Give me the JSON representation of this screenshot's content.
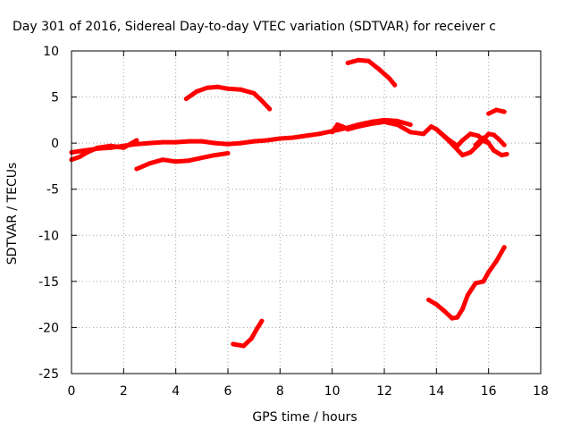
{
  "chart_data": {
    "type": "scatter",
    "title": "Day 301 of 2016, Sidereal Day-to-day VTEC variation (SDTVAR) for receiver c",
    "xlabel": "GPS time / hours",
    "ylabel": "SDTVAR / TECUs",
    "xlim": [
      0,
      18
    ],
    "ylim": [
      -25,
      10
    ],
    "xticks": [
      0,
      2,
      4,
      6,
      8,
      10,
      12,
      14,
      16,
      18
    ],
    "yticks": [
      10,
      5,
      0,
      -5,
      -10,
      -15,
      -20,
      -25
    ],
    "x_tick_labels": [
      "0",
      "2",
      "4",
      "6",
      "8",
      "10",
      "12",
      "14",
      "16",
      "18"
    ],
    "y_tick_labels": [
      "10",
      "5",
      "0",
      "-5",
      "-10",
      "-15",
      "-20",
      "-25"
    ],
    "grid": true,
    "legend": "none",
    "point_color": "#ff0000",
    "series": [
      {
        "x": [
          0.0,
          0.5,
          1.0,
          1.5,
          2.0,
          2.5,
          3.0,
          3.5,
          4.0,
          4.5,
          5.0,
          5.5,
          6.0,
          6.5,
          7.0,
          7.5,
          8.0,
          8.5,
          9.0,
          9.5,
          10.0,
          10.5,
          11.0,
          11.5,
          12.0,
          12.5,
          13.0
        ],
        "y": [
          -1.0,
          -0.8,
          -0.6,
          -0.5,
          -0.3,
          -0.1,
          0.0,
          0.1,
          0.1,
          0.2,
          0.2,
          0.0,
          -0.1,
          0.0,
          0.2,
          0.3,
          0.5,
          0.6,
          0.8,
          1.0,
          1.3,
          1.6,
          2.0,
          2.3,
          2.5,
          2.4,
          2.0
        ]
      },
      {
        "x": [
          0.0,
          0.3,
          0.6,
          1.0,
          1.5,
          2.0,
          2.5
        ],
        "y": [
          -1.8,
          -1.5,
          -1.0,
          -0.5,
          -0.3,
          -0.5,
          0.3
        ]
      },
      {
        "x": [
          2.5,
          3.0,
          3.5,
          4.0,
          4.5,
          5.0,
          5.5,
          6.0
        ],
        "y": [
          -2.8,
          -2.2,
          -1.8,
          -2.0,
          -1.9,
          -1.6,
          -1.3,
          -1.1
        ]
      },
      {
        "x": [
          4.4,
          4.8,
          5.2,
          5.6,
          6.0,
          6.5,
          7.0,
          7.3,
          7.6
        ],
        "y": [
          4.8,
          5.6,
          6.0,
          6.1,
          5.9,
          5.8,
          5.4,
          4.6,
          3.7
        ]
      },
      {
        "x": [
          10.6,
          11.0,
          11.4,
          11.8,
          12.2,
          12.4
        ],
        "y": [
          8.7,
          9.0,
          8.9,
          8.0,
          7.0,
          6.3
        ]
      },
      {
        "x": [
          10.0,
          10.2,
          10.4,
          10.6,
          11.0,
          11.5,
          12.0,
          12.5,
          13.0,
          13.5,
          13.8,
          14.0,
          14.2,
          14.5,
          14.8,
          15.0,
          15.3,
          15.6,
          15.9
        ],
        "y": [
          1.2,
          2.0,
          1.8,
          1.5,
          1.8,
          2.1,
          2.3,
          2.0,
          1.2,
          1.0,
          1.8,
          1.5,
          1.0,
          0.3,
          -0.3,
          0.3,
          1.0,
          0.8,
          0.1
        ]
      },
      {
        "x": [
          14.0,
          14.5,
          15.0,
          15.3,
          15.6,
          16.0,
          16.2,
          16.4,
          16.6
        ],
        "y": [
          1.5,
          0.2,
          -1.3,
          -1.0,
          -0.2,
          1.0,
          0.9,
          0.4,
          -0.2
        ]
      },
      {
        "x": [
          15.5,
          15.8,
          16.0,
          16.2,
          16.5,
          16.7
        ],
        "y": [
          -0.2,
          0.6,
          0.0,
          -0.8,
          -1.3,
          -1.2
        ]
      },
      {
        "x": [
          16.0,
          16.3,
          16.6
        ],
        "y": [
          3.2,
          3.6,
          3.4
        ]
      },
      {
        "x": [
          13.7,
          14.0,
          14.3,
          14.6,
          14.8,
          15.0,
          15.2,
          15.5,
          15.8,
          16.0,
          16.3,
          16.6
        ],
        "y": [
          -17.0,
          -17.5,
          -18.2,
          -19.0,
          -18.9,
          -18.0,
          -16.5,
          -15.2,
          -15.0,
          -14.0,
          -12.8,
          -11.3
        ]
      },
      {
        "x": [
          6.2,
          6.6,
          6.9,
          7.1,
          7.3
        ],
        "y": [
          -21.8,
          -22.0,
          -21.2,
          -20.2,
          -19.3
        ]
      }
    ]
  }
}
